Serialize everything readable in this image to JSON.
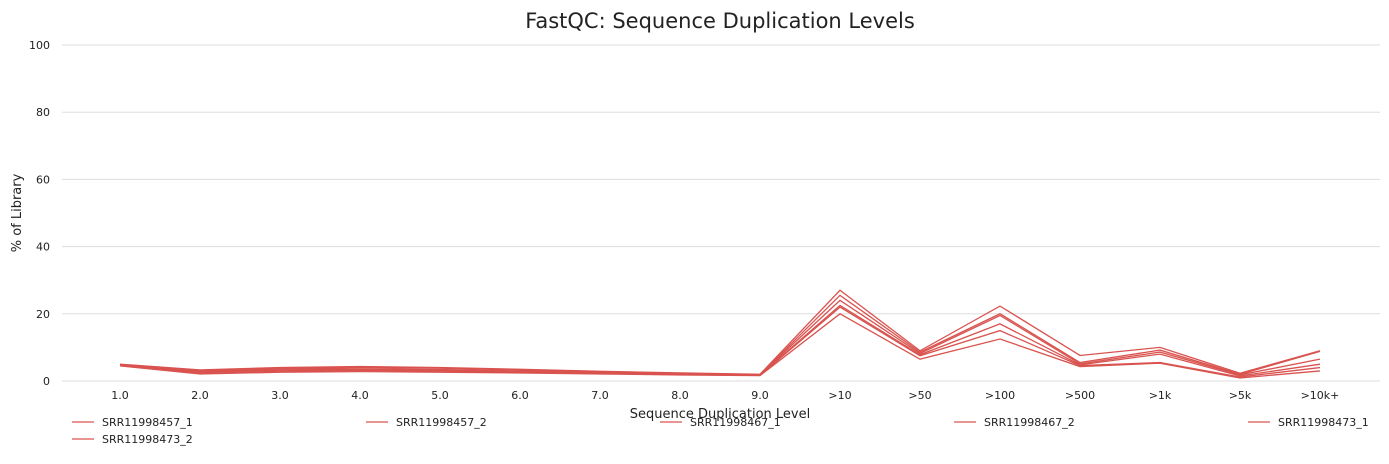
{
  "chart_data": {
    "type": "line",
    "title": "FastQC: Sequence Duplication Levels",
    "xlabel": "Sequence Duplication Level",
    "ylabel": "% of Library",
    "ylim": [
      0,
      100
    ],
    "yticks": [
      0,
      20,
      40,
      60,
      80,
      100
    ],
    "grid": true,
    "legend_position": "bottom",
    "categories": [
      "1.0",
      "2.0",
      "3.0",
      "4.0",
      "5.0",
      "6.0",
      "7.0",
      "8.0",
      "9.0",
      ">10",
      ">50",
      ">100",
      ">500",
      ">1k",
      ">5k",
      ">10k+"
    ],
    "series_color": "#d9534f",
    "series": [
      {
        "name": "SRR11998457_1",
        "values": [
          5.0,
          3.3,
          4.0,
          4.3,
          4.0,
          3.5,
          2.9,
          2.4,
          2.0,
          27.0,
          9.0,
          22.3,
          7.6,
          10.0,
          2.3,
          9.0
        ]
      },
      {
        "name": "SRR11998457_2",
        "values": [
          4.9,
          3.0,
          3.7,
          4.0,
          3.8,
          3.3,
          2.7,
          2.3,
          1.9,
          25.5,
          8.6,
          20.0,
          5.5,
          9.2,
          2.0,
          8.8
        ]
      },
      {
        "name": "SRR11998467_1",
        "values": [
          4.8,
          2.8,
          3.5,
          3.6,
          3.4,
          3.0,
          2.6,
          2.2,
          1.9,
          24.0,
          8.2,
          19.5,
          5.1,
          8.6,
          1.8,
          6.5
        ]
      },
      {
        "name": "SRR11998467_2",
        "values": [
          4.7,
          2.6,
          3.2,
          3.3,
          3.1,
          2.8,
          2.4,
          2.0,
          1.8,
          22.5,
          7.8,
          17.0,
          4.8,
          8.0,
          1.5,
          5.0
        ]
      },
      {
        "name": "SRR11998473_1",
        "values": [
          4.6,
          2.3,
          2.9,
          3.1,
          2.9,
          2.6,
          2.2,
          1.9,
          1.7,
          22.0,
          7.5,
          15.0,
          4.6,
          5.5,
          1.2,
          4.0
        ]
      },
      {
        "name": "SRR11998473_2",
        "values": [
          4.5,
          2.1,
          2.6,
          2.8,
          2.6,
          2.4,
          2.1,
          1.8,
          1.6,
          20.0,
          6.5,
          12.5,
          4.3,
          5.3,
          0.9,
          3.0
        ]
      }
    ]
  }
}
